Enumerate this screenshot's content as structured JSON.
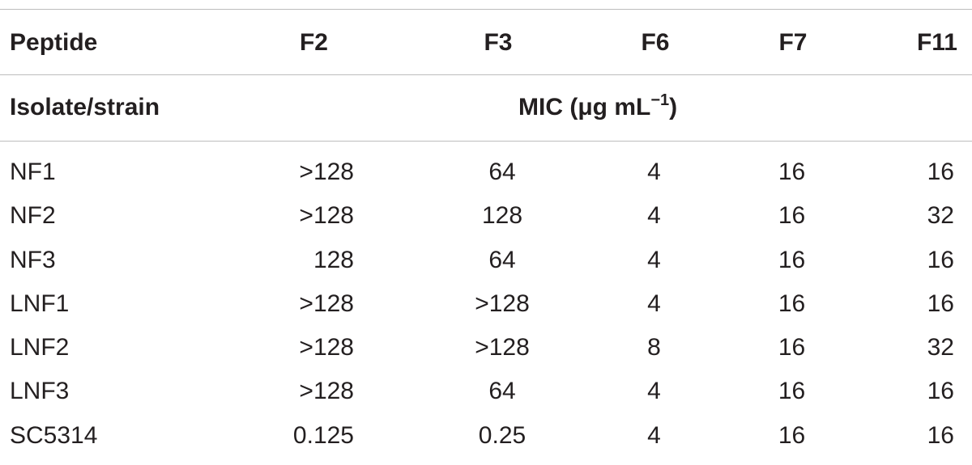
{
  "table": {
    "header_row1": {
      "peptide": "Peptide",
      "f2": "F2",
      "f3": "F3",
      "f6": "F6",
      "f7": "F7",
      "f11": "F11"
    },
    "header_row2": {
      "isolate": "Isolate/strain",
      "mic_label": "MIC (μg mL",
      "mic_exp": "−1",
      "mic_close": ")"
    },
    "rows": [
      {
        "strain": "NF1",
        "f2": ">128",
        "f3": "64",
        "f6": "4",
        "f7": "16",
        "f11": "16"
      },
      {
        "strain": "NF2",
        "f2": ">128",
        "f3": "128",
        "f6": "4",
        "f7": "16",
        "f11": "32"
      },
      {
        "strain": "NF3",
        "f2": "128",
        "f3": "64",
        "f6": "4",
        "f7": "16",
        "f11": "16"
      },
      {
        "strain": "LNF1",
        "f2": ">128",
        "f3": ">128",
        "f6": "4",
        "f7": "16",
        "f11": "16"
      },
      {
        "strain": "LNF2",
        "f2": ">128",
        "f3": ">128",
        "f6": "8",
        "f7": "16",
        "f11": "32"
      },
      {
        "strain": "LNF3",
        "f2": ">128",
        "f3": "64",
        "f6": "4",
        "f7": "16",
        "f11": "16"
      },
      {
        "strain": "SC5314",
        "f2": "0.125",
        "f3": "0.25",
        "f6": "4",
        "f7": "16",
        "f11": "16"
      }
    ]
  }
}
